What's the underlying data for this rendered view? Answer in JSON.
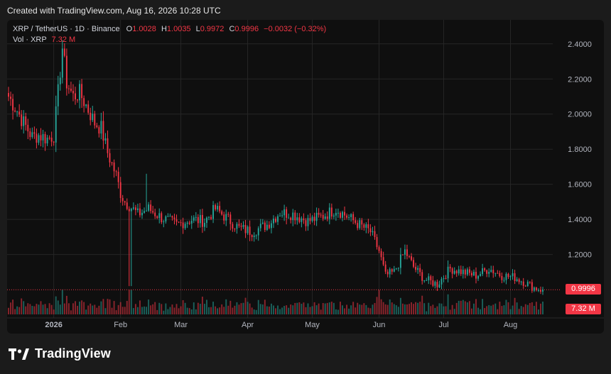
{
  "caption": "Created with TradingView.com, Aug 16, 2026 10:28 UTC",
  "legend": {
    "symbol": "XRP / TetherUS · 1D · Binance",
    "ohlc": [
      {
        "key": "O",
        "value": "1.0028"
      },
      {
        "key": "H",
        "value": "1.0035"
      },
      {
        "key": "L",
        "value": "0.9972"
      },
      {
        "key": "C",
        "value": "0.9996"
      }
    ],
    "change": "−0.0032 (−0.32%)",
    "volume_label": "Vol · XRP",
    "volume_value": "7.32 M"
  },
  "price_tag": "0.9996",
  "volume_tag": "7.32 M",
  "brand": "TradingView",
  "colors": {
    "up": "#26a69a",
    "down": "#f23645",
    "background": "#0f0f0f",
    "grid": "#262626"
  },
  "chart_data": {
    "type": "candlestick",
    "y_axis": {
      "range": [
        0.96,
        2.48
      ],
      "ticks": [
        "2.4000",
        "2.2000",
        "2.0000",
        "1.8000",
        "1.6000",
        "1.4000",
        "1.2000"
      ],
      "position": "right"
    },
    "x_axis": {
      "labels": [
        "2026",
        "Feb",
        "Mar",
        "Apr",
        "May",
        "Jun",
        "Jul",
        "Aug"
      ],
      "range": [
        "2025-12-11",
        "2026-08-16"
      ]
    },
    "grid": true,
    "last_price": 0.9996,
    "close_path": [
      [
        "2025-12-11",
        2.1
      ],
      [
        "2025-12-15",
        2.02
      ],
      [
        "2025-12-18",
        1.95
      ],
      [
        "2025-12-22",
        1.87
      ],
      [
        "2025-12-25",
        1.88
      ],
      [
        "2025-12-29",
        1.86
      ],
      [
        "2026-01-01",
        1.88
      ],
      [
        "2026-01-03",
        2.12
      ],
      [
        "2026-01-05",
        2.38
      ],
      [
        "2026-01-07",
        2.18
      ],
      [
        "2026-01-10",
        2.1
      ],
      [
        "2026-01-13",
        2.12
      ],
      [
        "2026-01-16",
        2.05
      ],
      [
        "2026-01-20",
        1.95
      ],
      [
        "2026-01-23",
        1.92
      ],
      [
        "2026-01-26",
        1.78
      ],
      [
        "2026-01-30",
        1.65
      ],
      [
        "2026-02-01",
        1.55
      ],
      [
        "2026-02-03",
        1.5
      ],
      [
        "2026-02-05",
        1.48
      ],
      [
        "2026-02-09",
        1.43
      ],
      [
        "2026-02-14",
        1.46
      ],
      [
        "2026-02-20",
        1.41
      ],
      [
        "2026-02-27",
        1.37
      ],
      [
        "2026-03-06",
        1.4
      ],
      [
        "2026-03-12",
        1.39
      ],
      [
        "2026-03-17",
        1.46
      ],
      [
        "2026-03-22",
        1.41
      ],
      [
        "2026-03-28",
        1.35
      ],
      [
        "2026-04-03",
        1.33
      ],
      [
        "2026-04-10",
        1.37
      ],
      [
        "2026-04-16",
        1.44
      ],
      [
        "2026-04-22",
        1.43
      ],
      [
        "2026-04-29",
        1.39
      ],
      [
        "2026-05-06",
        1.42
      ],
      [
        "2026-05-12",
        1.46
      ],
      [
        "2026-05-18",
        1.41
      ],
      [
        "2026-05-24",
        1.36
      ],
      [
        "2026-05-28",
        1.33
      ],
      [
        "2026-06-01",
        1.22
      ],
      [
        "2026-06-04",
        1.08
      ],
      [
        "2026-06-08",
        1.1
      ],
      [
        "2026-06-13",
        1.22
      ],
      [
        "2026-06-17",
        1.13
      ],
      [
        "2026-06-22",
        1.06
      ],
      [
        "2026-06-28",
        1.03
      ],
      [
        "2026-07-04",
        1.12
      ],
      [
        "2026-07-10",
        1.1
      ],
      [
        "2026-07-16",
        1.08
      ],
      [
        "2026-07-22",
        1.12
      ],
      [
        "2026-07-28",
        1.08
      ],
      [
        "2026-08-03",
        1.07
      ],
      [
        "2026-08-08",
        1.04
      ],
      [
        "2026-08-12",
        1.01
      ],
      [
        "2026-08-16",
        0.9996
      ]
    ]
  }
}
